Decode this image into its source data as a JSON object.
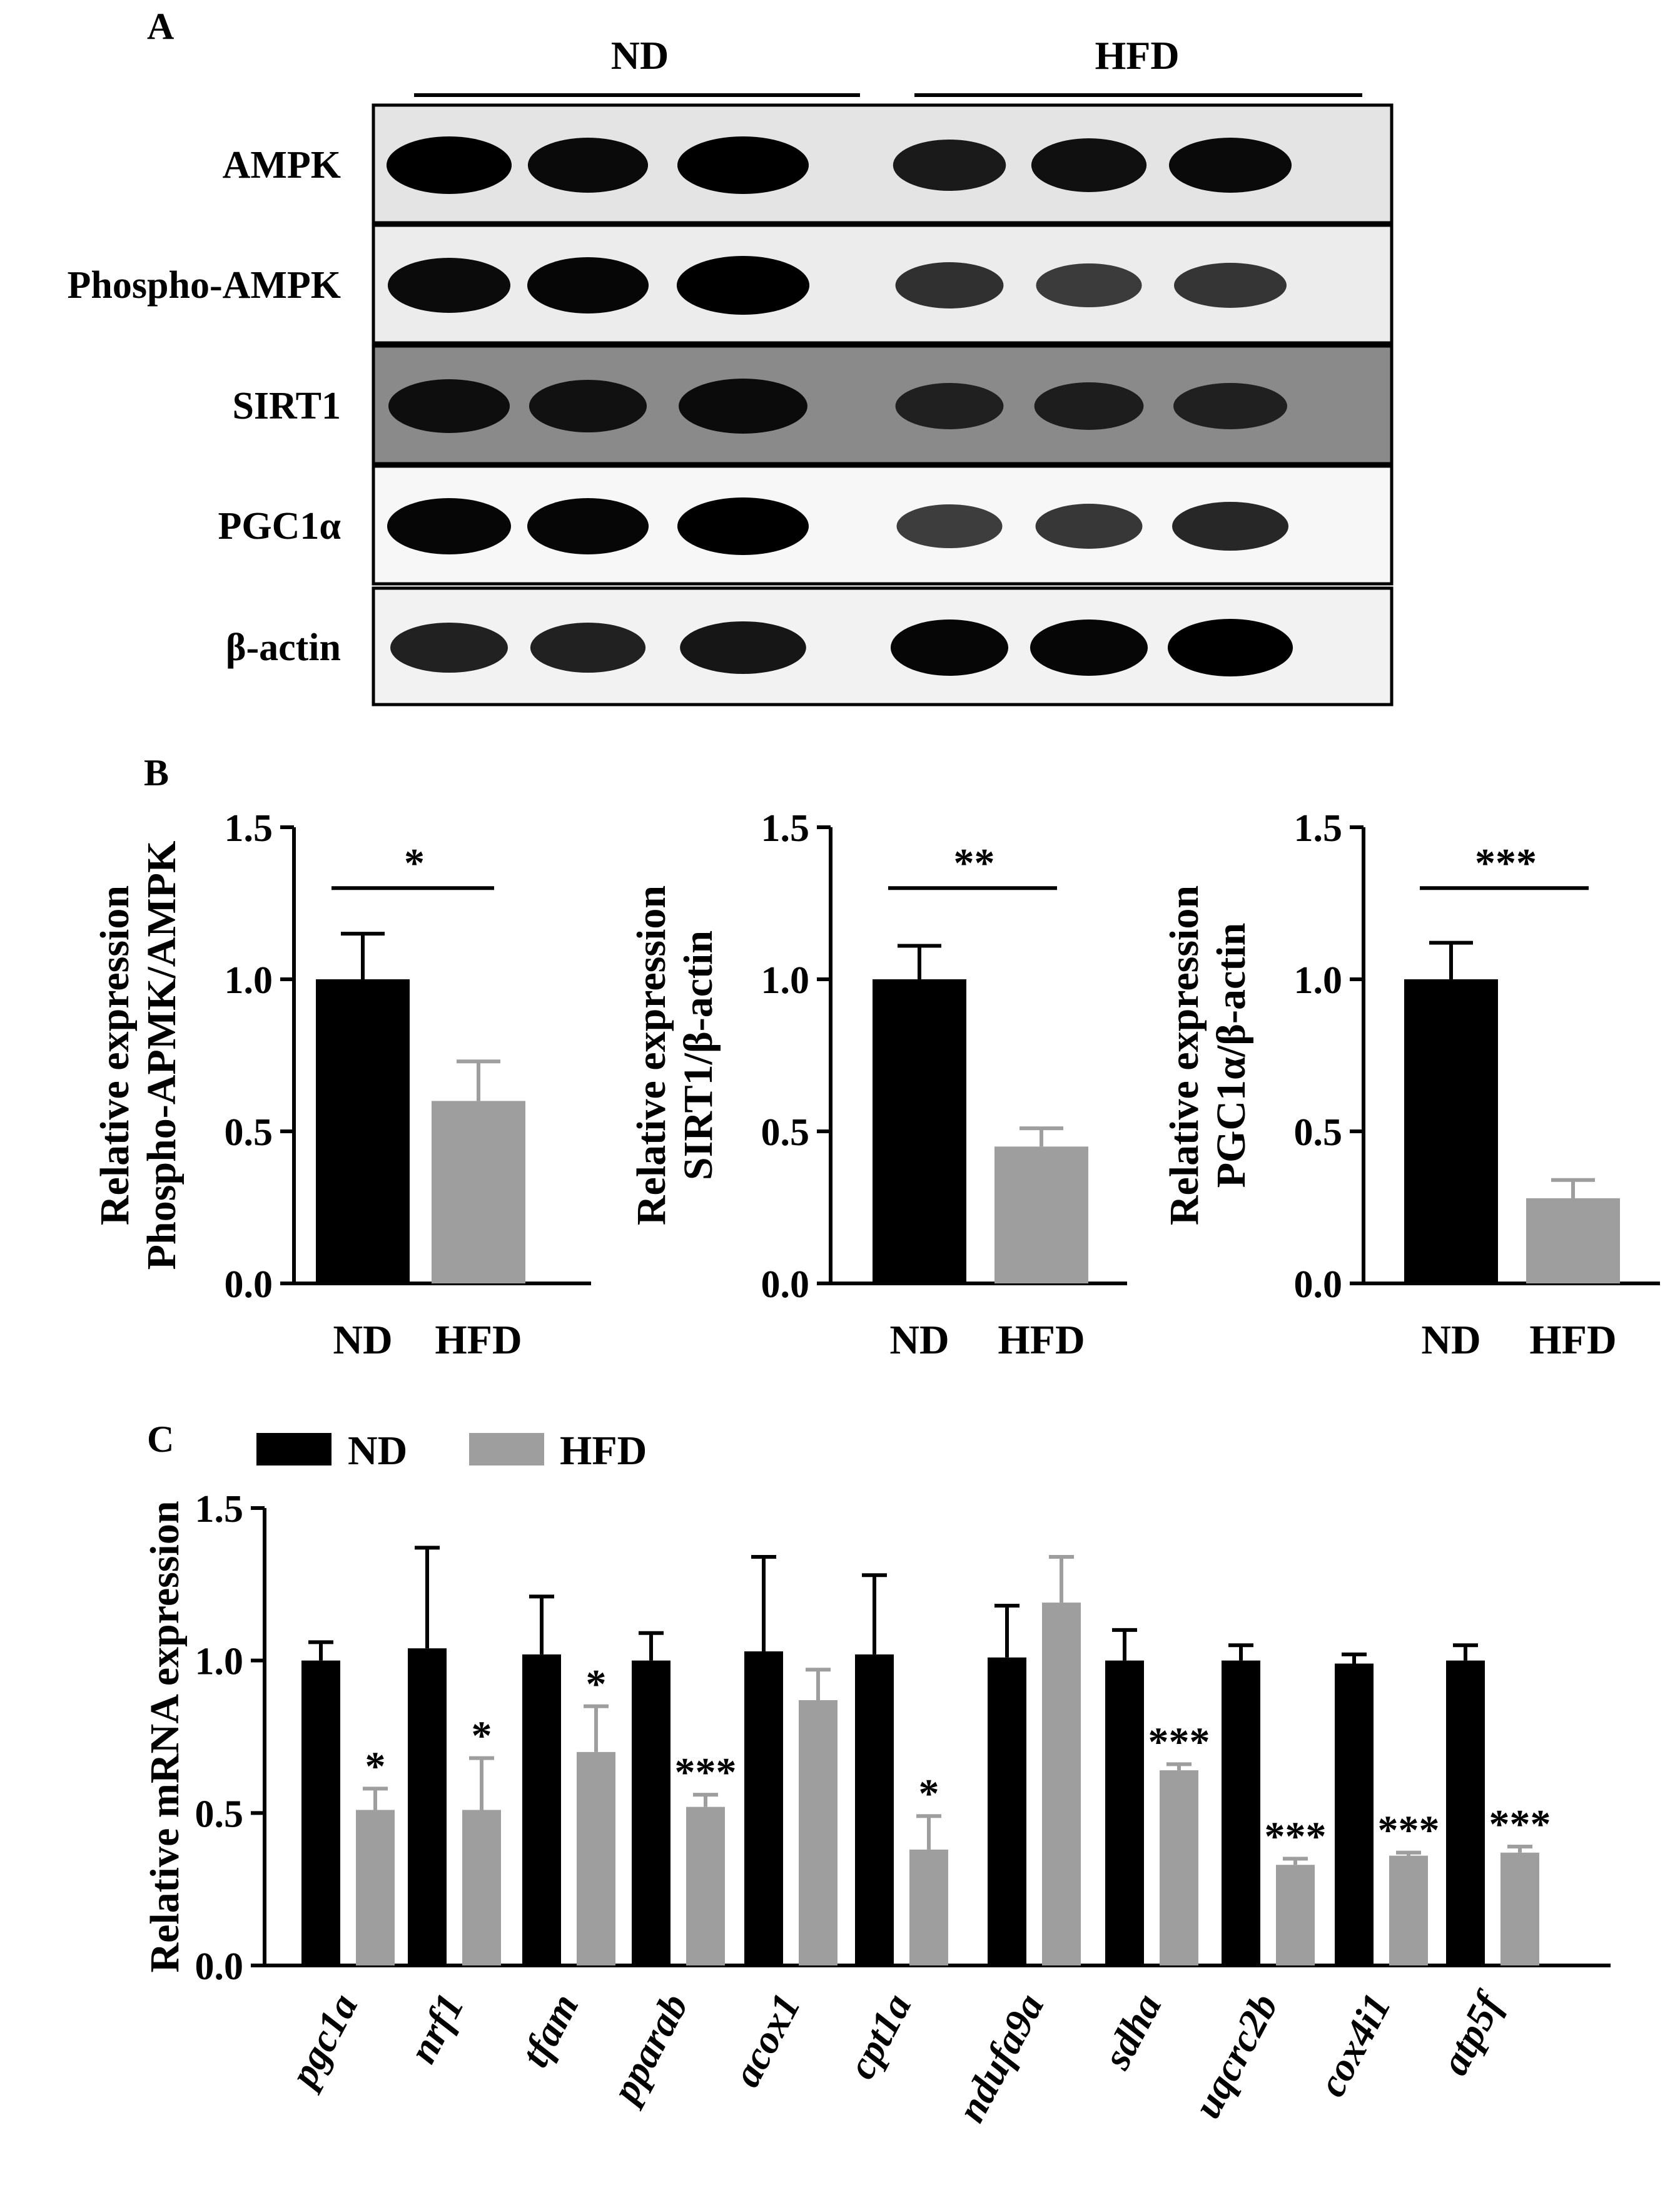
{
  "colors": {
    "nd": "#000000",
    "hfd": "#9e9e9e",
    "axis": "#000000"
  },
  "panel_a": {
    "letter": "A",
    "groups": [
      "ND",
      "HFD"
    ],
    "rows": [
      "AMPK",
      "Phospho-AMPK",
      "SIRT1",
      "PGC1α",
      "β-actin"
    ]
  },
  "panel_b": {
    "letter": "B"
  },
  "panel_c": {
    "letter": "C"
  },
  "chart_data": [
    {
      "type": "bar",
      "ylabel": [
        "Relative expression",
        "Phospho-APMK/AMPK"
      ],
      "ylim": [
        0,
        1.5
      ],
      "yticks": [
        "0.0",
        "0.5",
        "1.0",
        "1.5"
      ],
      "categories": [
        "ND",
        "HFD"
      ],
      "values": [
        1.0,
        0.6
      ],
      "errors": [
        0.15,
        0.13
      ],
      "significance": "*"
    },
    {
      "type": "bar",
      "ylabel": [
        "Relative expression",
        "SIRT1/β-actin"
      ],
      "ylim": [
        0,
        1.5
      ],
      "yticks": [
        "0.0",
        "0.5",
        "1.0",
        "1.5"
      ],
      "categories": [
        "ND",
        "HFD"
      ],
      "values": [
        1.0,
        0.45
      ],
      "errors": [
        0.11,
        0.06
      ],
      "significance": "**"
    },
    {
      "type": "bar",
      "ylabel": [
        "Relative expression",
        "PGC1α/β-actin"
      ],
      "ylim": [
        0,
        1.5
      ],
      "yticks": [
        "0.0",
        "0.5",
        "1.0",
        "1.5"
      ],
      "categories": [
        "ND",
        "HFD"
      ],
      "values": [
        1.0,
        0.28
      ],
      "errors": [
        0.12,
        0.06
      ],
      "significance": "***"
    },
    {
      "type": "bar",
      "ylabel": "Relative mRNA expression",
      "ylim": [
        0,
        1.5
      ],
      "yticks": [
        "0.0",
        "0.5",
        "1.0",
        "1.5"
      ],
      "legend": [
        "ND",
        "HFD"
      ],
      "categories": [
        "pgc1a",
        "nrf1",
        "tfam",
        "pparab",
        "acox1",
        "cpt1a",
        "ndufa9a",
        "sdha",
        "uqcrc2b",
        "cox4i1",
        "atp5f"
      ],
      "series": [
        {
          "name": "ND",
          "values": [
            1.0,
            1.04,
            1.02,
            1.0,
            1.03,
            1.02,
            1.01,
            1.0,
            1.0,
            0.99,
            1.0
          ],
          "errors": [
            0.06,
            0.33,
            0.19,
            0.09,
            0.31,
            0.26,
            0.17,
            0.1,
            0.05,
            0.03,
            0.05
          ]
        },
        {
          "name": "HFD",
          "values": [
            0.51,
            0.51,
            0.7,
            0.52,
            0.87,
            0.38,
            1.19,
            0.64,
            0.33,
            0.36,
            0.37
          ],
          "errors": [
            0.07,
            0.17,
            0.15,
            0.04,
            0.1,
            0.11,
            0.15,
            0.02,
            0.02,
            0.01,
            0.02
          ]
        }
      ],
      "significance": [
        "*",
        "*",
        "*",
        "***",
        "",
        "*",
        "",
        "***",
        "***",
        "***",
        "***"
      ]
    }
  ]
}
